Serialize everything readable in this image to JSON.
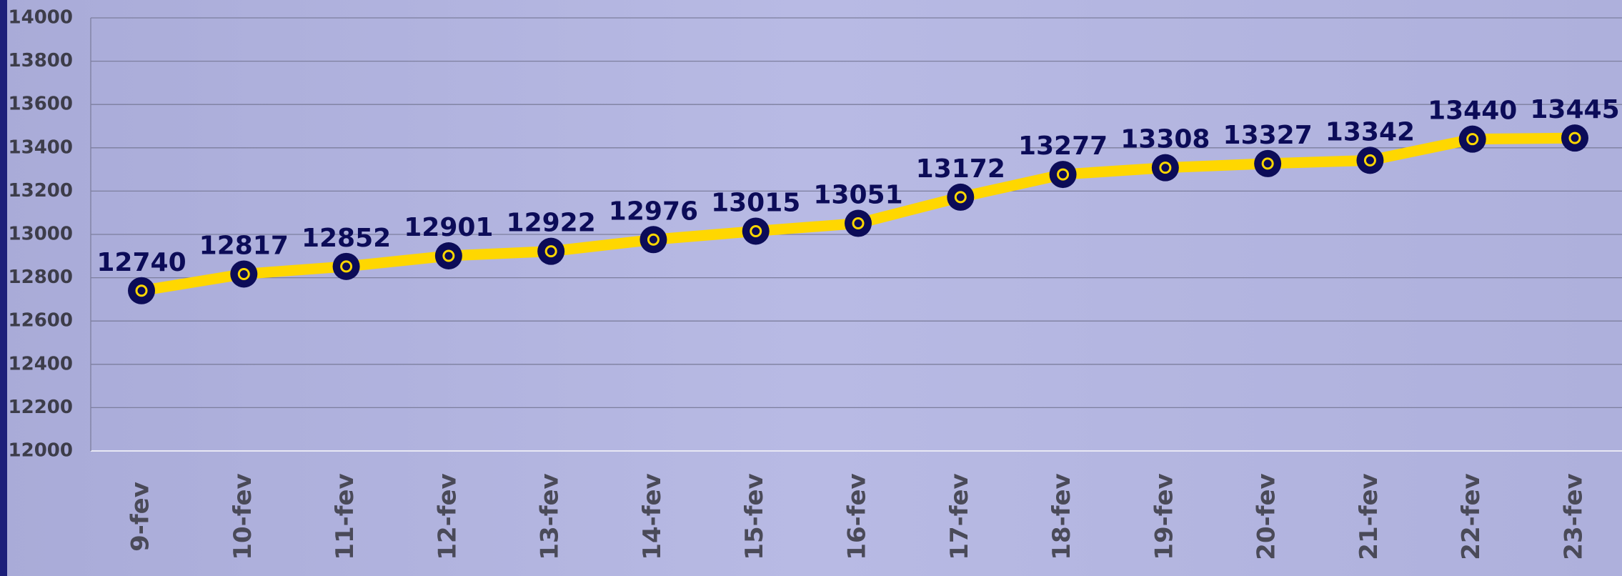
{
  "chart_data": {
    "type": "line",
    "categories": [
      "9-fev",
      "10-fev",
      "11-fev",
      "12-fev",
      "13-fev",
      "14-fev",
      "15-fev",
      "16-fev",
      "17-fev",
      "18-fev",
      "19-fev",
      "20-fev",
      "21-fev",
      "22-fev",
      "23-fev"
    ],
    "values": [
      12740,
      12817,
      12852,
      12901,
      12922,
      12976,
      13015,
      13051,
      13172,
      13277,
      13308,
      13327,
      13342,
      13440,
      13445
    ],
    "color": "#ffd700",
    "marker_color": "#0c0c58",
    "ylim": [
      12000,
      14000
    ],
    "yticks": [
      12000,
      12200,
      12400,
      12600,
      12800,
      13000,
      13200,
      13400,
      13600,
      13800,
      14000
    ],
    "grid": true
  }
}
